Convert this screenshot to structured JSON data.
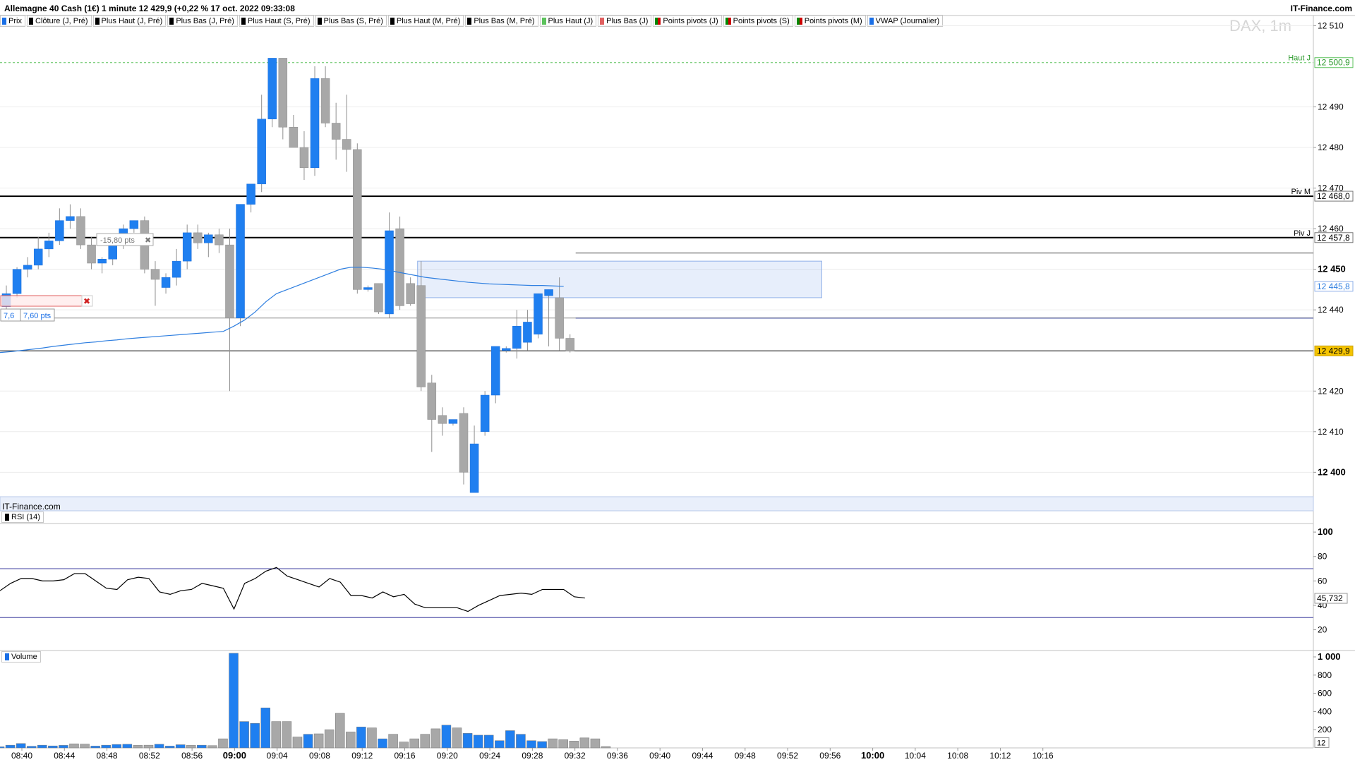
{
  "header": {
    "title": "Allemagne 40 Cash (1€) 1 minute 12 429,9 (+0,22 % 17 oct. 2022 09:33:08",
    "brand": "IT-Finance.com",
    "watermark": "DAX, 1m",
    "footer_brand": "IT-Finance.com"
  },
  "legend": [
    {
      "label": "Prix",
      "color": "#1a6fe6"
    },
    {
      "label": "Clôture (J, Pré)",
      "color": "#000000"
    },
    {
      "label": "Plus Haut (J, Pré)",
      "color": "#000000"
    },
    {
      "label": "Plus Bas (J, Pré)",
      "color": "#000000"
    },
    {
      "label": "Plus Haut (S, Pré)",
      "color": "#000000"
    },
    {
      "label": "Plus Bas (S, Pré)",
      "color": "#000000"
    },
    {
      "label": "Plus Haut (M, Pré)",
      "color": "#000000"
    },
    {
      "label": "Plus Bas (M, Pré)",
      "color": "#000000"
    },
    {
      "label": "Plus Haut (J)",
      "color": "#5cc25c"
    },
    {
      "label": "Plus Bas (J)",
      "color": "#e06060"
    },
    {
      "label": "Points pivots (J)",
      "color": "split"
    },
    {
      "label": "Points pivots (S)",
      "color": "split"
    },
    {
      "label": "Points pivots (M)",
      "color": "split"
    },
    {
      "label": "VWAP (Journalier)",
      "color": "#1a6fe6"
    }
  ],
  "colors": {
    "up": "#1f7ff0",
    "down": "#a8a8a8",
    "vwap": "#2f7fe0",
    "rsi": "#000000",
    "rsi_band": "#4040a0",
    "current": "#f5c400",
    "haut_j": "#5cc25c"
  },
  "chart_data": [
    {
      "type": "candlestick",
      "ylim": [
        12394.5,
        12512.5
      ],
      "y_ticks": [
        {
          "value": 12510,
          "label": "12 510"
        },
        {
          "value": 12490,
          "label": "12 490"
        },
        {
          "value": 12480,
          "label": "12 480"
        },
        {
          "value": 12470,
          "label": "12 470"
        },
        {
          "value": 12460,
          "label": "12 460"
        },
        {
          "value": 12450,
          "label": "12 450"
        },
        {
          "value": 12440,
          "label": "12 440"
        },
        {
          "value": 12420,
          "label": "12 420"
        },
        {
          "value": 12410,
          "label": "12 410"
        },
        {
          "value": 12400,
          "label": "12 400"
        }
      ],
      "x_ticks": [
        "08:40",
        "08:44",
        "08:48",
        "08:52",
        "08:56",
        "09:00",
        "09:04",
        "09:08",
        "09:12",
        "09:16",
        "09:20",
        "09:24",
        "09:28",
        "09:32",
        "09:36",
        "09:40",
        "09:44",
        "09:48",
        "09:52",
        "09:56",
        "10:00",
        "10:04",
        "10:08",
        "10:12",
        "10:16"
      ],
      "bold_x_ticks": [
        "09:00",
        "10:00"
      ],
      "candles": [
        {
          "o": 12440.8,
          "h": 12446.0,
          "l": 12439.5,
          "c": 12444.0
        },
        {
          "o": 12444.0,
          "h": 12450.5,
          "l": 12443.0,
          "c": 12450.0
        },
        {
          "o": 12450.0,
          "h": 12453.0,
          "l": 12448.0,
          "c": 12451.0
        },
        {
          "o": 12451.0,
          "h": 12458.0,
          "l": 12450.0,
          "c": 12455.0
        },
        {
          "o": 12455.0,
          "h": 12459.0,
          "l": 12453.0,
          "c": 12457.0
        },
        {
          "o": 12457.0,
          "h": 12465.0,
          "l": 12456.0,
          "c": 12462.0
        },
        {
          "o": 12462.0,
          "h": 12466.0,
          "l": 12460.0,
          "c": 12463.0
        },
        {
          "o": 12463.0,
          "h": 12465.0,
          "l": 12455.0,
          "c": 12456.0
        },
        {
          "o": 12456.0,
          "h": 12458.0,
          "l": 12450.0,
          "c": 12451.5
        },
        {
          "o": 12451.5,
          "h": 12453.0,
          "l": 12449.0,
          "c": 12452.5
        },
        {
          "o": 12452.5,
          "h": 12458.0,
          "l": 12451.0,
          "c": 12457.0
        },
        {
          "o": 12457.0,
          "h": 12461.0,
          "l": 12455.0,
          "c": 12460.0
        },
        {
          "o": 12460.0,
          "h": 12462.0,
          "l": 12459.0,
          "c": 12462.0
        },
        {
          "o": 12462.0,
          "h": 12463.0,
          "l": 12449.0,
          "c": 12450.0
        },
        {
          "o": 12450.0,
          "h": 12452.0,
          "l": 12441.0,
          "c": 12447.5
        },
        {
          "o": 12445.5,
          "h": 12449.0,
          "l": 12444.0,
          "c": 12448.0
        },
        {
          "o": 12448.0,
          "h": 12455.0,
          "l": 12446.0,
          "c": 12452.0
        },
        {
          "o": 12452.0,
          "h": 12461.0,
          "l": 12450.0,
          "c": 12459.0
        },
        {
          "o": 12459.0,
          "h": 12461.0,
          "l": 12455.0,
          "c": 12456.5
        },
        {
          "o": 12456.5,
          "h": 12459.0,
          "l": 12453.0,
          "c": 12458.5
        },
        {
          "o": 12458.5,
          "h": 12460.0,
          "l": 12454.0,
          "c": 12456.0
        },
        {
          "o": 12456.0,
          "h": 12460.0,
          "l": 12420.0,
          "c": 12438.0
        },
        {
          "o": 12438.0,
          "h": 12466.0,
          "l": 12436.0,
          "c": 12466.0
        },
        {
          "o": 12466.0,
          "h": 12470.0,
          "l": 12464.0,
          "c": 12471.0
        },
        {
          "o": 12471.0,
          "h": 12493.0,
          "l": 12469.0,
          "c": 12487.0
        },
        {
          "o": 12487.0,
          "h": 12502.0,
          "l": 12485.0,
          "c": 12502.0
        },
        {
          "o": 12502.0,
          "h": 12502.0,
          "l": 12482.0,
          "c": 12485.0
        },
        {
          "o": 12485.0,
          "h": 12488.0,
          "l": 12480.0,
          "c": 12480.0
        },
        {
          "o": 12480.0,
          "h": 12484.0,
          "l": 12472.0,
          "c": 12475.0
        },
        {
          "o": 12475.0,
          "h": 12500.0,
          "l": 12473.0,
          "c": 12497.0
        },
        {
          "o": 12497.0,
          "h": 12500.0,
          "l": 12485.0,
          "c": 12486.0
        },
        {
          "o": 12486.0,
          "h": 12491.0,
          "l": 12477.0,
          "c": 12482.0
        },
        {
          "o": 12482.0,
          "h": 12493.0,
          "l": 12474.0,
          "c": 12479.5
        },
        {
          "o": 12479.5,
          "h": 12481.0,
          "l": 12444.0,
          "c": 12445.0
        },
        {
          "o": 12445.0,
          "h": 12446.0,
          "l": 12444.5,
          "c": 12445.5
        },
        {
          "o": 12446.5,
          "h": 12446.5,
          "l": 12439.0,
          "c": 12439.5
        },
        {
          "o": 12439.0,
          "h": 12464.0,
          "l": 12438.0,
          "c": 12459.5
        },
        {
          "o": 12460.0,
          "h": 12463.0,
          "l": 12440.0,
          "c": 12441.0
        },
        {
          "o": 12446.5,
          "h": 12448.0,
          "l": 12441.0,
          "c": 12441.5
        },
        {
          "o": 12446.0,
          "h": 12452.0,
          "l": 12420.0,
          "c": 12421.0
        },
        {
          "o": 12422.0,
          "h": 12424.0,
          "l": 12405.0,
          "c": 12413.0
        },
        {
          "o": 12414.0,
          "h": 12416.0,
          "l": 12409.0,
          "c": 12412.0
        },
        {
          "o": 12412.0,
          "h": 12413.0,
          "l": 12411.5,
          "c": 12413.0
        },
        {
          "o": 12414.5,
          "h": 12416.0,
          "l": 12397.0,
          "c": 12400.0
        },
        {
          "o": 12395.0,
          "h": 12411.5,
          "l": 12395.0,
          "c": 12407.0
        },
        {
          "o": 12410.0,
          "h": 12420.0,
          "l": 12409.0,
          "c": 12419.0
        },
        {
          "o": 12419.0,
          "h": 12430.0,
          "l": 12417.0,
          "c": 12431.0
        },
        {
          "o": 12430.0,
          "h": 12431.0,
          "l": 12429.5,
          "c": 12430.5
        },
        {
          "o": 12430.5,
          "h": 12440.0,
          "l": 12428.0,
          "c": 12436.0
        },
        {
          "o": 12432.0,
          "h": 12440.0,
          "l": 12430.0,
          "c": 12437.0
        },
        {
          "o": 12434.0,
          "h": 12444.0,
          "l": 12433.0,
          "c": 12444.0
        },
        {
          "o": 12443.5,
          "h": 12445.0,
          "l": 12431.0,
          "c": 12445.0
        },
        {
          "o": 12443.0,
          "h": 12448.0,
          "l": 12430.0,
          "c": 12433.0
        },
        {
          "o": 12433.0,
          "h": 12434.0,
          "l": 12429.5,
          "c": 12429.9
        }
      ],
      "vwap": [
        12429.5,
        12429.7,
        12430.0,
        12430.3,
        12430.6,
        12431.0,
        12431.3,
        12431.6,
        12431.9,
        12432.1,
        12432.4,
        12432.6,
        12432.9,
        12433.1,
        12433.3,
        12433.5,
        12433.7,
        12433.9,
        12434.1,
        12434.3,
        12434.5,
        12434.7,
        12436.0,
        12437.5,
        12439.5,
        12442.0,
        12444.0,
        12445.0,
        12446.0,
        12447.0,
        12448.0,
        12449.0,
        12450.0,
        12450.5,
        12450.5,
        12450.3,
        12450.0,
        12449.5,
        12449.0,
        12448.5,
        12448.0,
        12447.7,
        12447.4,
        12447.1,
        12446.8,
        12446.6,
        12446.4,
        12446.3,
        12446.2,
        12446.1,
        12446.0,
        12446.0,
        12445.9,
        12445.8
      ],
      "levels": [
        {
          "name": "haut-j-line",
          "value": 12500.9,
          "label": "Haut J",
          "price": "12 500,9",
          "style": "dashed-green"
        },
        {
          "name": "piv-m-line",
          "value": 12468.0,
          "label": "Piv M",
          "price": "12 468,0",
          "style": "black-bold"
        },
        {
          "name": "piv-j-line",
          "value": 12457.8,
          "label": "Piv J",
          "price": "12 457,8",
          "style": "black-bold"
        },
        {
          "name": "vwap-level",
          "value": 12445.8,
          "label": "",
          "price": "12 445,8",
          "style": "vwap"
        },
        {
          "name": "current-price-line",
          "value": 12429.9,
          "label": "",
          "price": "12 429,9",
          "style": "current"
        }
      ],
      "zone": {
        "from_index": 39,
        "to_index": 77,
        "low": 12443.0,
        "high": 12452.0
      },
      "user_lines": [
        {
          "value": 12454.0,
          "from_index": 53,
          "color": "#444444"
        },
        {
          "value": 12438.0,
          "from_index": 53,
          "color": "#1a2fc8"
        },
        {
          "value": 12438.0,
          "from_index": 0,
          "color": "#888888"
        }
      ],
      "annotations": [
        {
          "name": "measure-label-top",
          "text": "-15,80 pts"
        },
        {
          "name": "measure-label-left-a",
          "text": "7,6"
        },
        {
          "name": "measure-label-left-b",
          "text": "7,60 pts"
        }
      ]
    },
    {
      "type": "line",
      "name": "RSI (14)",
      "ylim": [
        3,
        107
      ],
      "y_ticks": [
        {
          "value": 100,
          "label": "100"
        },
        {
          "value": 80,
          "label": "80"
        },
        {
          "value": 60,
          "label": "60"
        },
        {
          "value": 40,
          "label": "40"
        },
        {
          "value": 20,
          "label": "20"
        }
      ],
      "bands": [
        70,
        30
      ],
      "current": {
        "value": 45.732,
        "label": "45,732"
      },
      "values": [
        52,
        58,
        62,
        62,
        60,
        60,
        61,
        66,
        66,
        60,
        54,
        53,
        61,
        63,
        62,
        51,
        49,
        52,
        53,
        58,
        56,
        54,
        37,
        58,
        62,
        68,
        71,
        64,
        61,
        58,
        55,
        62,
        59,
        48,
        48,
        46,
        51,
        47,
        49,
        41,
        38,
        38,
        38,
        38,
        35,
        40,
        44,
        48,
        49,
        50,
        49,
        53,
        53,
        53,
        47,
        46
      ]
    },
    {
      "type": "bar",
      "name": "Volume",
      "ylim": [
        0,
        1070
      ],
      "y_ticks": [
        {
          "value": 1000,
          "label": "1 000"
        },
        {
          "value": 800,
          "label": "800"
        },
        {
          "value": 600,
          "label": "600"
        },
        {
          "value": 400,
          "label": "400"
        },
        {
          "value": 200,
          "label": "200"
        }
      ],
      "current": {
        "value": 12,
        "label": "12"
      },
      "values": [
        12,
        30,
        48,
        18,
        30,
        22,
        28,
        45,
        42,
        20,
        30,
        38,
        40,
        28,
        30,
        40,
        20,
        35,
        28,
        30,
        25,
        100,
        1040,
        290,
        270,
        440,
        290,
        290,
        120,
        150,
        155,
        200,
        380,
        175,
        230,
        220,
        100,
        150,
        65,
        100,
        150,
        210,
        250,
        220,
        160,
        140,
        140,
        80,
        190,
        150,
        80,
        70,
        100,
        90,
        75,
        110,
        100,
        15
      ]
    }
  ]
}
